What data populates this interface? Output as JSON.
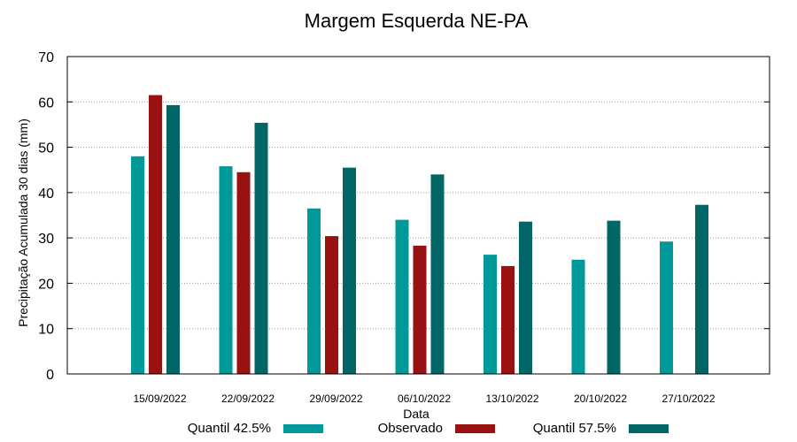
{
  "chart_data": {
    "type": "bar",
    "title": "Margem Esquerda NE-PA",
    "xlabel": "Data",
    "ylabel": "Precipitação Acumulada 30 dias (mm)",
    "ylim": [
      0,
      70
    ],
    "yticks": [
      0,
      10,
      20,
      30,
      40,
      50,
      60,
      70
    ],
    "grid": true,
    "legend_position": "bottom",
    "categories": [
      "15/09/2022",
      "22/09/2022",
      "29/09/2022",
      "06/10/2022",
      "13/10/2022",
      "20/10/2022",
      "27/10/2022"
    ],
    "series": [
      {
        "name": "Quantil 42.5%",
        "color": "#009999",
        "values": [
          48.0,
          45.8,
          36.5,
          34.0,
          26.3,
          25.2,
          29.2
        ]
      },
      {
        "name": "Observado",
        "color": "#991111",
        "values": [
          61.5,
          44.5,
          30.4,
          28.3,
          23.8,
          null,
          null
        ]
      },
      {
        "name": "Quantil 57.5%",
        "color": "#006666",
        "values": [
          59.3,
          55.4,
          45.5,
          44.0,
          33.6,
          33.8,
          37.3
        ]
      }
    ]
  }
}
